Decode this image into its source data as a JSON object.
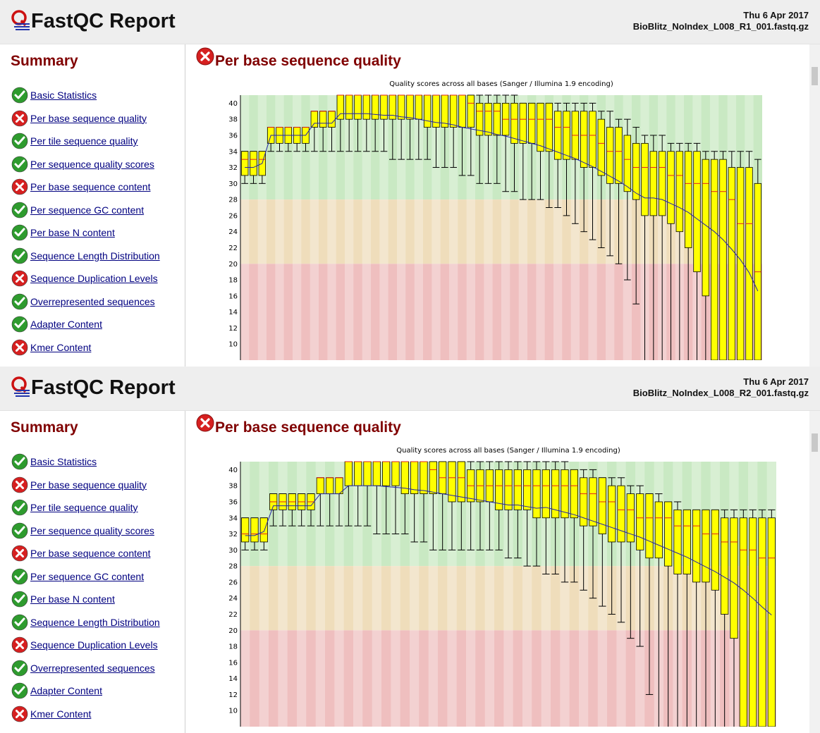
{
  "reports": [
    {
      "title": "FastQC Report",
      "date": "Thu 6 Apr 2017",
      "filename": "BioBlitz_NoIndex_L008_R1_001.fastq.gz",
      "summary_title": "Summary",
      "section_title": "Per base sequence quality",
      "section_status": "fail"
    },
    {
      "title": "FastQC Report",
      "date": "Thu 6 Apr 2017",
      "filename": "BioBlitz_NoIndex_L008_R2_001.fastq.gz",
      "summary_title": "Summary",
      "section_title": "Per base sequence quality",
      "section_status": "fail"
    }
  ],
  "modules": [
    {
      "label": "Basic Statistics",
      "status": "pass"
    },
    {
      "label": "Per base sequence quality",
      "status": "fail"
    },
    {
      "label": "Per tile sequence quality",
      "status": "pass"
    },
    {
      "label": "Per sequence quality scores",
      "status": "pass"
    },
    {
      "label": "Per base sequence content",
      "status": "fail"
    },
    {
      "label": "Per sequence GC content",
      "status": "pass"
    },
    {
      "label": "Per base N content",
      "status": "pass"
    },
    {
      "label": "Sequence Length Distribution",
      "status": "pass"
    },
    {
      "label": "Sequence Duplication Levels",
      "status": "fail"
    },
    {
      "label": "Overrepresented sequences",
      "status": "pass"
    },
    {
      "label": "Adapter Content",
      "status": "pass"
    },
    {
      "label": "Kmer Content",
      "status": "fail"
    }
  ],
  "colors": {
    "pass": "#2e9b2e",
    "fail": "#d62020",
    "good_zone": "#c9e9c3",
    "warn_zone": "#efddbb",
    "bad_zone": "#efbfbf",
    "box": "#ffff00",
    "median": "#e02020",
    "mean": "#2222aa",
    "heading": "#800000",
    "link": "#000080"
  },
  "chart_data": [
    {
      "type": "box",
      "title": "Quality scores across all bases (Sanger / Illumina 1.9 encoding)",
      "yticks": [
        10,
        12,
        14,
        16,
        18,
        20,
        22,
        24,
        26,
        28,
        30,
        32,
        34,
        36,
        38,
        40
      ],
      "ylim": [
        8,
        41
      ],
      "zones": {
        "good": [
          28,
          41
        ],
        "warn": [
          20,
          28
        ],
        "bad": [
          0,
          20
        ]
      },
      "boxes": [
        {
          "q1": 31,
          "q3": 34,
          "median": 33,
          "low": 30,
          "high": 34
        },
        {
          "q1": 31,
          "q3": 34,
          "median": 33,
          "low": 30,
          "high": 34
        },
        {
          "q1": 31,
          "q3": 34,
          "median": 33,
          "low": 30,
          "high": 34
        },
        {
          "q1": 35,
          "q3": 37,
          "median": 37,
          "low": 34,
          "high": 37
        },
        {
          "q1": 35,
          "q3": 37,
          "median": 37,
          "low": 34,
          "high": 37
        },
        {
          "q1": 35,
          "q3": 37,
          "median": 37,
          "low": 34,
          "high": 37
        },
        {
          "q1": 35,
          "q3": 37,
          "median": 37,
          "low": 34,
          "high": 37
        },
        {
          "q1": 35,
          "q3": 37,
          "median": 37,
          "low": 34,
          "high": 37
        },
        {
          "q1": 37,
          "q3": 39,
          "median": 39,
          "low": 34,
          "high": 39
        },
        {
          "q1": 37,
          "q3": 39,
          "median": 39,
          "low": 34,
          "high": 39
        },
        {
          "q1": 37,
          "q3": 39,
          "median": 39,
          "low": 34,
          "high": 39
        },
        {
          "q1": 38,
          "q3": 41,
          "median": 41,
          "low": 34,
          "high": 41
        },
        {
          "q1": 38,
          "q3": 41,
          "median": 41,
          "low": 34,
          "high": 41
        },
        {
          "q1": 38,
          "q3": 41,
          "median": 41,
          "low": 34,
          "high": 41
        },
        {
          "q1": 38,
          "q3": 41,
          "median": 41,
          "low": 34,
          "high": 41
        },
        {
          "q1": 38,
          "q3": 41,
          "median": 41,
          "low": 34,
          "high": 41
        },
        {
          "q1": 38,
          "q3": 41,
          "median": 41,
          "low": 34,
          "high": 41
        },
        {
          "q1": 38,
          "q3": 41,
          "median": 41,
          "low": 33,
          "high": 41
        },
        {
          "q1": 38,
          "q3": 41,
          "median": 41,
          "low": 33,
          "high": 41
        },
        {
          "q1": 38,
          "q3": 41,
          "median": 41,
          "low": 33,
          "high": 41
        },
        {
          "q1": 38,
          "q3": 41,
          "median": 41,
          "low": 33,
          "high": 41
        },
        {
          "q1": 37,
          "q3": 41,
          "median": 41,
          "low": 33,
          "high": 41
        },
        {
          "q1": 37,
          "q3": 41,
          "median": 41,
          "low": 32,
          "high": 41
        },
        {
          "q1": 37,
          "q3": 41,
          "median": 41,
          "low": 32,
          "high": 41
        },
        {
          "q1": 37,
          "q3": 41,
          "median": 41,
          "low": 32,
          "high": 41
        },
        {
          "q1": 37,
          "q3": 41,
          "median": 41,
          "low": 31,
          "high": 41
        },
        {
          "q1": 37,
          "q3": 41,
          "median": 40,
          "low": 31,
          "high": 41
        },
        {
          "q1": 36,
          "q3": 40,
          "median": 39,
          "low": 30,
          "high": 41
        },
        {
          "q1": 36,
          "q3": 40,
          "median": 39,
          "low": 30,
          "high": 41
        },
        {
          "q1": 36,
          "q3": 40,
          "median": 39,
          "low": 30,
          "high": 41
        },
        {
          "q1": 36,
          "q3": 40,
          "median": 38,
          "low": 29,
          "high": 41
        },
        {
          "q1": 35,
          "q3": 40,
          "median": 38,
          "low": 29,
          "high": 41
        },
        {
          "q1": 35,
          "q3": 40,
          "median": 38,
          "low": 28,
          "high": 40
        },
        {
          "q1": 35,
          "q3": 40,
          "median": 38,
          "low": 28,
          "high": 40
        },
        {
          "q1": 34,
          "q3": 40,
          "median": 38,
          "low": 28,
          "high": 40
        },
        {
          "q1": 34,
          "q3": 40,
          "median": 38,
          "low": 27,
          "high": 40
        },
        {
          "q1": 33,
          "q3": 39,
          "median": 37,
          "low": 27,
          "high": 40
        },
        {
          "q1": 33,
          "q3": 39,
          "median": 37,
          "low": 26,
          "high": 40
        },
        {
          "q1": 33,
          "q3": 39,
          "median": 36,
          "low": 25,
          "high": 40
        },
        {
          "q1": 32,
          "q3": 39,
          "median": 36,
          "low": 24,
          "high": 40
        },
        {
          "q1": 32,
          "q3": 39,
          "median": 36,
          "low": 23,
          "high": 40
        },
        {
          "q1": 31,
          "q3": 38,
          "median": 35,
          "low": 22,
          "high": 39
        },
        {
          "q1": 30,
          "q3": 37,
          "median": 34,
          "low": 21,
          "high": 39
        },
        {
          "q1": 30,
          "q3": 37,
          "median": 34,
          "low": 20,
          "high": 38
        },
        {
          "q1": 29,
          "q3": 36,
          "median": 33,
          "low": 18,
          "high": 38
        },
        {
          "q1": 28,
          "q3": 35,
          "median": 32,
          "low": 15,
          "high": 37
        },
        {
          "q1": 26,
          "q3": 35,
          "median": 32,
          "low": 8,
          "high": 36
        },
        {
          "q1": 26,
          "q3": 34,
          "median": 32,
          "low": 8,
          "high": 36
        },
        {
          "q1": 26,
          "q3": 34,
          "median": 32,
          "low": 8,
          "high": 36
        },
        {
          "q1": 25,
          "q3": 34,
          "median": 31,
          "low": 8,
          "high": 35
        },
        {
          "q1": 24,
          "q3": 34,
          "median": 31,
          "low": 8,
          "high": 35
        },
        {
          "q1": 22,
          "q3": 34,
          "median": 30,
          "low": 8,
          "high": 35
        },
        {
          "q1": 19,
          "q3": 34,
          "median": 30,
          "low": 8,
          "high": 35
        },
        {
          "q1": 16,
          "q3": 33,
          "median": 30,
          "low": 8,
          "high": 34
        },
        {
          "q1": 8,
          "q3": 33,
          "median": 29,
          "low": 8,
          "high": 34
        },
        {
          "q1": 8,
          "q3": 33,
          "median": 29,
          "low": 8,
          "high": 34
        },
        {
          "q1": 8,
          "q3": 32,
          "median": 28,
          "low": 8,
          "high": 34
        },
        {
          "q1": 8,
          "q3": 32,
          "median": 25,
          "low": 8,
          "high": 34
        },
        {
          "q1": 8,
          "q3": 32,
          "median": 25,
          "low": 8,
          "high": 34
        },
        {
          "q1": 8,
          "q3": 30,
          "median": 19,
          "low": 8,
          "high": 33
        }
      ],
      "mean": [
        32,
        32,
        32.5,
        36,
        36,
        36,
        36,
        36,
        37.5,
        37.5,
        37.5,
        38.7,
        38.7,
        38.7,
        38.7,
        38.6,
        38.5,
        38.5,
        38.3,
        38.2,
        38.0,
        37.8,
        37.6,
        37.5,
        37.3,
        37.0,
        36.8,
        36.6,
        36.4,
        36.1,
        35.9,
        35.6,
        35.3,
        35.0,
        34.7,
        34.3,
        33.9,
        33.5,
        33.1,
        32.6,
        32.1,
        31.5,
        30.9,
        30.3,
        29.6,
        28.8,
        28.2,
        28.2,
        28.0,
        27.5,
        27.0,
        26.4,
        25.6,
        24.8,
        24.0,
        23.0,
        21.8,
        20.5,
        18.9,
        16.6
      ]
    },
    {
      "type": "box",
      "title": "Quality scores across all bases (Sanger / Illumina 1.9 encoding)",
      "yticks": [
        10,
        12,
        14,
        16,
        18,
        20,
        22,
        24,
        26,
        28,
        30,
        32,
        34,
        36,
        38,
        40
      ],
      "ylim": [
        8,
        41
      ],
      "zones": {
        "good": [
          28,
          41
        ],
        "warn": [
          20,
          28
        ],
        "bad": [
          0,
          20
        ]
      },
      "boxes": [
        {
          "q1": 31,
          "q3": 34,
          "median": 32,
          "low": 30,
          "high": 34
        },
        {
          "q1": 31,
          "q3": 34,
          "median": 32,
          "low": 30,
          "high": 34
        },
        {
          "q1": 31,
          "q3": 34,
          "median": 32,
          "low": 30,
          "high": 34
        },
        {
          "q1": 35,
          "q3": 37,
          "median": 36,
          "low": 33,
          "high": 37
        },
        {
          "q1": 35,
          "q3": 37,
          "median": 36,
          "low": 33,
          "high": 37
        },
        {
          "q1": 35,
          "q3": 37,
          "median": 36,
          "low": 33,
          "high": 37
        },
        {
          "q1": 35,
          "q3": 37,
          "median": 36,
          "low": 33,
          "high": 37
        },
        {
          "q1": 35,
          "q3": 37,
          "median": 36,
          "low": 33,
          "high": 37
        },
        {
          "q1": 37,
          "q3": 39,
          "median": 39,
          "low": 33,
          "high": 39
        },
        {
          "q1": 37,
          "q3": 39,
          "median": 39,
          "low": 33,
          "high": 39
        },
        {
          "q1": 37,
          "q3": 39,
          "median": 39,
          "low": 33,
          "high": 39
        },
        {
          "q1": 38,
          "q3": 41,
          "median": 41,
          "low": 33,
          "high": 41
        },
        {
          "q1": 38,
          "q3": 41,
          "median": 41,
          "low": 33,
          "high": 41
        },
        {
          "q1": 38,
          "q3": 41,
          "median": 41,
          "low": 33,
          "high": 41
        },
        {
          "q1": 38,
          "q3": 41,
          "median": 41,
          "low": 32,
          "high": 41
        },
        {
          "q1": 38,
          "q3": 41,
          "median": 41,
          "low": 32,
          "high": 41
        },
        {
          "q1": 38,
          "q3": 41,
          "median": 41,
          "low": 32,
          "high": 41
        },
        {
          "q1": 37,
          "q3": 41,
          "median": 41,
          "low": 32,
          "high": 41
        },
        {
          "q1": 37,
          "q3": 41,
          "median": 41,
          "low": 31,
          "high": 41
        },
        {
          "q1": 37,
          "q3": 41,
          "median": 41,
          "low": 31,
          "high": 41
        },
        {
          "q1": 37,
          "q3": 41,
          "median": 40,
          "low": 30,
          "high": 41
        },
        {
          "q1": 37,
          "q3": 41,
          "median": 39,
          "low": 30,
          "high": 41
        },
        {
          "q1": 36,
          "q3": 41,
          "median": 39,
          "low": 30,
          "high": 41
        },
        {
          "q1": 36,
          "q3": 41,
          "median": 39,
          "low": 30,
          "high": 41
        },
        {
          "q1": 36,
          "q3": 40,
          "median": 38,
          "low": 30,
          "high": 41
        },
        {
          "q1": 36,
          "q3": 40,
          "median": 38,
          "low": 30,
          "high": 41
        },
        {
          "q1": 36,
          "q3": 40,
          "median": 38,
          "low": 30,
          "high": 41
        },
        {
          "q1": 35,
          "q3": 40,
          "median": 38,
          "low": 30,
          "high": 41
        },
        {
          "q1": 35,
          "q3": 40,
          "median": 38,
          "low": 29,
          "high": 41
        },
        {
          "q1": 35,
          "q3": 40,
          "median": 38,
          "low": 29,
          "high": 41
        },
        {
          "q1": 35,
          "q3": 40,
          "median": 38,
          "low": 28,
          "high": 41
        },
        {
          "q1": 34,
          "q3": 40,
          "median": 38,
          "low": 28,
          "high": 41
        },
        {
          "q1": 34,
          "q3": 40,
          "median": 38,
          "low": 27,
          "high": 41
        },
        {
          "q1": 34,
          "q3": 40,
          "median": 38,
          "low": 27,
          "high": 41
        },
        {
          "q1": 34,
          "q3": 40,
          "median": 38,
          "low": 26,
          "high": 41
        },
        {
          "q1": 34,
          "q3": 40,
          "median": 38,
          "low": 26,
          "high": 40
        },
        {
          "q1": 33,
          "q3": 39,
          "median": 37,
          "low": 25,
          "high": 40
        },
        {
          "q1": 33,
          "q3": 39,
          "median": 37,
          "low": 24,
          "high": 40
        },
        {
          "q1": 32,
          "q3": 39,
          "median": 36,
          "low": 23,
          "high": 39
        },
        {
          "q1": 31,
          "q3": 38,
          "median": 36,
          "low": 22,
          "high": 39
        },
        {
          "q1": 31,
          "q3": 38,
          "median": 35,
          "low": 21,
          "high": 39
        },
        {
          "q1": 31,
          "q3": 37,
          "median": 35,
          "low": 19,
          "high": 38
        },
        {
          "q1": 30,
          "q3": 37,
          "median": 34,
          "low": 18,
          "high": 38
        },
        {
          "q1": 29,
          "q3": 37,
          "median": 34,
          "low": 12,
          "high": 37
        },
        {
          "q1": 29,
          "q3": 36,
          "median": 34,
          "low": 8,
          "high": 37
        },
        {
          "q1": 28,
          "q3": 36,
          "median": 34,
          "low": 8,
          "high": 36
        },
        {
          "q1": 27,
          "q3": 35,
          "median": 33,
          "low": 8,
          "high": 36
        },
        {
          "q1": 27,
          "q3": 35,
          "median": 33,
          "low": 8,
          "high": 35
        },
        {
          "q1": 26,
          "q3": 35,
          "median": 33,
          "low": 8,
          "high": 35
        },
        {
          "q1": 26,
          "q3": 35,
          "median": 32,
          "low": 8,
          "high": 35
        },
        {
          "q1": 25,
          "q3": 35,
          "median": 32,
          "low": 8,
          "high": 35
        },
        {
          "q1": 22,
          "q3": 34,
          "median": 31,
          "low": 8,
          "high": 35
        },
        {
          "q1": 19,
          "q3": 34,
          "median": 31,
          "low": 8,
          "high": 35
        },
        {
          "q1": 8,
          "q3": 34,
          "median": 30,
          "low": 8,
          "high": 35
        },
        {
          "q1": 8,
          "q3": 34,
          "median": 30,
          "low": 8,
          "high": 35
        },
        {
          "q1": 8,
          "q3": 34,
          "median": 29,
          "low": 8,
          "high": 35
        },
        {
          "q1": 8,
          "q3": 34,
          "median": 29,
          "low": 8,
          "high": 35
        }
      ],
      "mean": [
        31.8,
        31.8,
        32.3,
        35.5,
        35.5,
        35.5,
        35.5,
        35.5,
        37.0,
        37.0,
        37.0,
        38.0,
        38.0,
        38.0,
        38.0,
        37.9,
        37.8,
        37.7,
        37.5,
        37.4,
        37.2,
        37.0,
        36.8,
        36.6,
        36.4,
        36.2,
        36.0,
        35.8,
        35.6,
        35.6,
        35.4,
        35.2,
        35.3,
        35.0,
        34.7,
        34.4,
        34.0,
        33.6,
        33.2,
        32.8,
        32.4,
        32.0,
        31.6,
        31.1,
        30.6,
        30.1,
        29.6,
        29.1,
        28.5,
        27.9,
        27.3,
        26.6,
        25.9,
        25.0,
        24.0,
        22.9,
        21.9
      ]
    }
  ]
}
